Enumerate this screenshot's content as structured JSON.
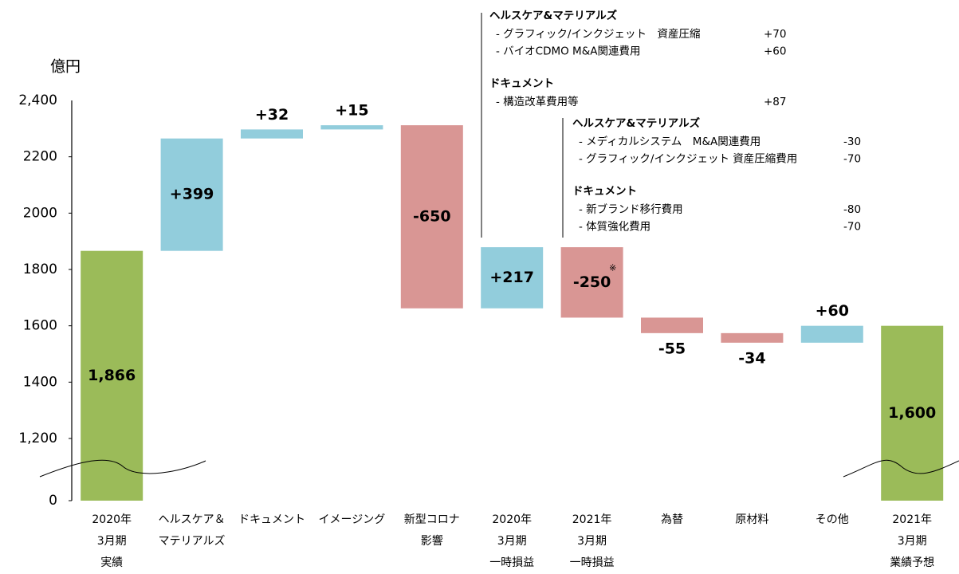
{
  "chart_data": {
    "type": "waterfall",
    "y_axis_label": "億円",
    "categories": [
      [
        "2020年",
        "3月期",
        "実績"
      ],
      [
        "ヘルスケア＆",
        "マテリアルズ"
      ],
      [
        "ドキュメント"
      ],
      [
        "イメージング"
      ],
      [
        "新型コロナ",
        "影響"
      ],
      [
        "2020年",
        "3月期",
        "一時損益"
      ],
      [
        "2021年",
        "3月期",
        "一時損益"
      ],
      [
        "為替"
      ],
      [
        "原材料"
      ],
      [
        "その他"
      ],
      [
        "2021年",
        "3月期",
        "業績予想"
      ]
    ],
    "values": [
      1866,
      399,
      32,
      15,
      -650,
      217,
      -250,
      -55,
      -34,
      60,
      1600
    ],
    "value_labels": [
      "1,866",
      "+399",
      "+32",
      "+15",
      "-650",
      "+217",
      "-250",
      "-55",
      "-34",
      "+60",
      "1,600"
    ],
    "colors": [
      "#9bbb59",
      "#92cddc",
      "#92cddc",
      "#92cddc",
      "#d99694",
      "#92cddc",
      "#d99694",
      "#d99694",
      "#d99694",
      "#92cddc",
      "#9bbb59"
    ],
    "ylim": [
      0,
      2400
    ],
    "yticks": [
      0,
      1200,
      1400,
      1600,
      1800,
      2000,
      2200,
      {
        "value": 1200,
        "label": "1,200"
      }
    ],
    "axis_break": true,
    "note_mark": "※",
    "annotations": [
      {
        "groups": [
          {
            "heading": "ヘルスケア&マテリアルズ",
            "items": [
              {
                "label": "- グラフィック/インクジェット　資産圧縮",
                "value": "+70"
              },
              {
                "label": "- バイオCDMO M&A関連費用",
                "value": "+60"
              }
            ]
          },
          {
            "heading": "ドキュメント",
            "items": [
              {
                "label": "- 構造改革費用等",
                "value": "+87"
              }
            ]
          }
        ]
      },
      {
        "groups": [
          {
            "heading": "ヘルスケア&マテリアルズ",
            "items": [
              {
                "label": "- メディカルシステム　M&A関連費用",
                "value": "-30"
              },
              {
                "label": "- グラフィック/インクジェット 資産圧縮費用",
                "value": "-70"
              }
            ]
          },
          {
            "heading": "ドキュメント",
            "items": [
              {
                "label": "- 新ブランド移行費用",
                "value": "-80"
              },
              {
                "label": "- 体質強化費用",
                "value": "-70"
              }
            ]
          }
        ]
      }
    ]
  }
}
